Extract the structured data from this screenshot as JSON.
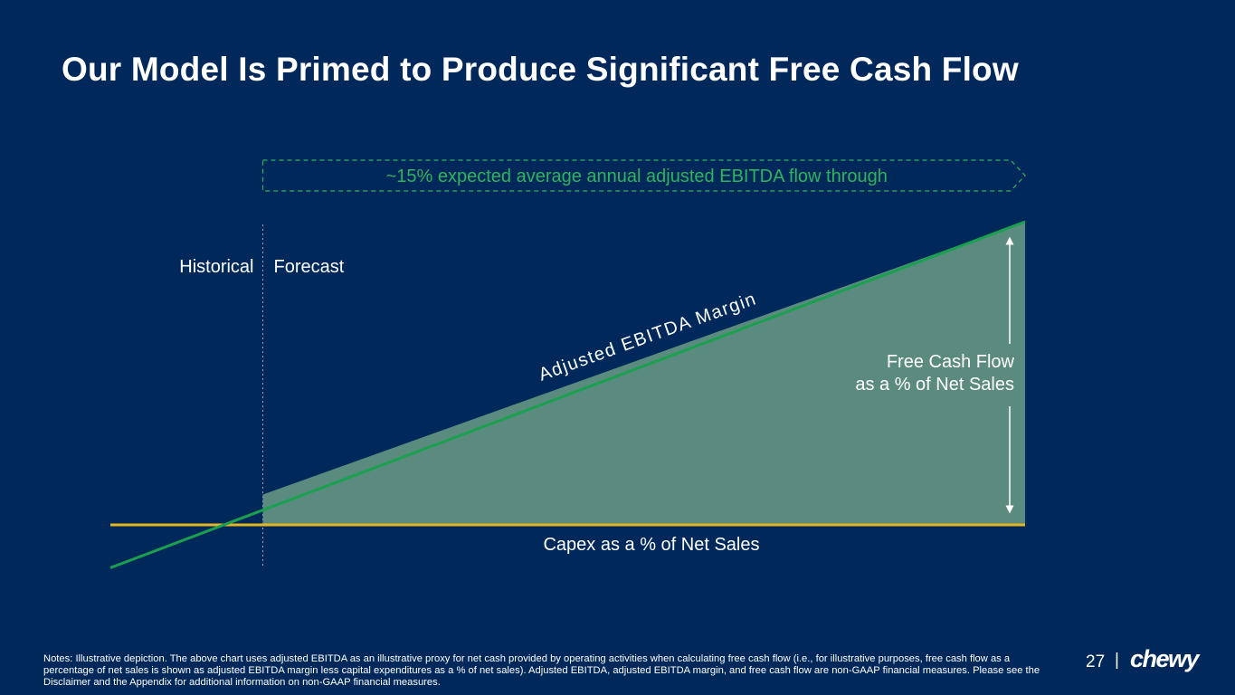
{
  "slide": {
    "title": "Our Model Is Primed to Produce Significant Free Cash Flow",
    "notes": "Notes: Illustrative depiction. The above chart uses adjusted EBITDA as an illustrative proxy for net cash provided by operating activities when calculating free cash flow (i.e., for illustrative purposes, free cash flow as a percentage of net sales is shown as adjusted EBITDA margin less capital expenditures as a % of net sales). Adjusted EBITDA, adjusted EBITDA margin, and free cash flow are non-GAAP financial measures. Please see the Disclaimer and the Appendix for additional information on non-GAAP financial measures.",
    "page_number": "27",
    "separator": "|",
    "logo": "chewy"
  },
  "chart_data": {
    "type": "area",
    "title": "",
    "callout": "~15% expected average annual adjusted EBITDA flow through",
    "period_labels": {
      "historical": "Historical",
      "forecast": "Forecast"
    },
    "series": [
      {
        "name": "Adjusted EBITDA Margin",
        "type": "line",
        "points": [
          [
            0,
            -0.7
          ],
          [
            1,
            1.0
          ],
          [
            6,
            10.0
          ]
        ]
      },
      {
        "name": "Capex as a % of Net Sales",
        "type": "line",
        "points": [
          [
            0,
            0.0
          ],
          [
            6,
            0.0
          ]
        ]
      }
    ],
    "shaded_area": {
      "label": "Free Cash Flow as a % of Net Sales",
      "label_lines": [
        "Free Cash Flow",
        "as a % of Net Sales"
      ],
      "between": [
        "Adjusted EBITDA Margin",
        "Capex as a % of Net Sales"
      ],
      "from_x": 1
    },
    "divider_x": 1,
    "xlim": [
      0,
      6
    ],
    "ylim": [
      -1,
      10
    ],
    "colors": {
      "background": "#00285a",
      "ebitda_line": "#1aa14f",
      "capex_line": "#e3b622",
      "area_fill": "#5b8a7f",
      "callout_text": "#2fb35c",
      "callout_border": "#2fb35c",
      "label_text": "#ffffff",
      "divider": "#9aa7b8"
    }
  }
}
